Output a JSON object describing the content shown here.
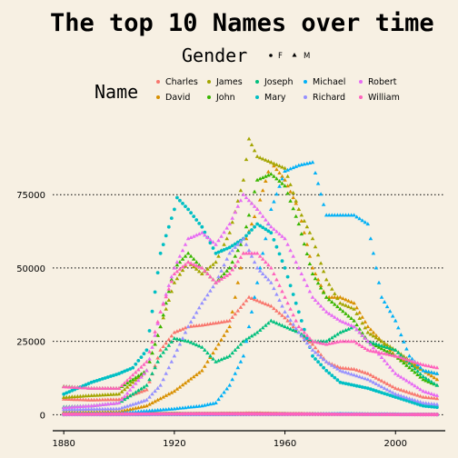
{
  "chart_data": {
    "type": "scatter",
    "title": "The top 10 Names over time",
    "xlabel": "",
    "ylabel": "",
    "xlim": [
      1876,
      2018
    ],
    "ylim": [
      -3000,
      98000
    ],
    "x_ticks": [
      1880,
      1920,
      1960,
      2000
    ],
    "y_ticks": [
      0,
      25000,
      50000,
      75000
    ],
    "y_tick_labels": [
      "0",
      "25000",
      "50000",
      "75000"
    ],
    "grid": "horizontal dotted",
    "legend_placement": "top",
    "shape_legend": {
      "title": "Gender",
      "items": [
        {
          "label": "F",
          "marker": "circle"
        },
        {
          "label": "M",
          "marker": "triangle"
        }
      ]
    },
    "color_legend": {
      "title": "Name",
      "items": [
        {
          "label": "Charles",
          "color": "#F8766D"
        },
        {
          "label": "David",
          "color": "#D89000"
        },
        {
          "label": "James",
          "color": "#A3A500"
        },
        {
          "label": "John",
          "color": "#39B600"
        },
        {
          "label": "Joseph",
          "color": "#00BF7D"
        },
        {
          "label": "Mary",
          "color": "#00BFC4"
        },
        {
          "label": "Michael",
          "color": "#00B0F6"
        },
        {
          "label": "Richard",
          "color": "#9590FF"
        },
        {
          "label": "Robert",
          "color": "#E76BF3"
        },
        {
          "label": "William",
          "color": "#FF62BC"
        }
      ]
    },
    "series": [
      {
        "name": "Charles",
        "gender": "M",
        "color": "#F8766D",
        "points": [
          [
            1880,
            5300
          ],
          [
            1890,
            5000
          ],
          [
            1900,
            5200
          ],
          [
            1910,
            8500
          ],
          [
            1915,
            22000
          ],
          [
            1920,
            28000
          ],
          [
            1925,
            30000
          ],
          [
            1930,
            30500
          ],
          [
            1940,
            32000
          ],
          [
            1947,
            40000
          ],
          [
            1955,
            37000
          ],
          [
            1960,
            33000
          ],
          [
            1965,
            28000
          ],
          [
            1970,
            24000
          ],
          [
            1975,
            18000
          ],
          [
            1980,
            16000
          ],
          [
            1985,
            15500
          ],
          [
            1990,
            14000
          ],
          [
            2000,
            9000
          ],
          [
            2010,
            6000
          ],
          [
            2015,
            5500
          ]
        ]
      },
      {
        "name": "Charles",
        "gender": "F",
        "color": "#F8766D",
        "points": [
          [
            1880,
            200
          ],
          [
            1920,
            400
          ],
          [
            1950,
            500
          ],
          [
            1980,
            200
          ],
          [
            2015,
            100
          ]
        ]
      },
      {
        "name": "David",
        "gender": "M",
        "color": "#D89000",
        "points": [
          [
            1880,
            800
          ],
          [
            1900,
            1000
          ],
          [
            1910,
            3000
          ],
          [
            1920,
            8000
          ],
          [
            1930,
            15000
          ],
          [
            1940,
            30000
          ],
          [
            1946,
            60000
          ],
          [
            1950,
            70000
          ],
          [
            1955,
            86000
          ],
          [
            1960,
            80000
          ],
          [
            1965,
            70000
          ],
          [
            1970,
            50000
          ],
          [
            1975,
            40000
          ],
          [
            1980,
            40000
          ],
          [
            1985,
            38000
          ],
          [
            1990,
            30000
          ],
          [
            2000,
            20000
          ],
          [
            2010,
            15000
          ],
          [
            2015,
            12000
          ]
        ]
      },
      {
        "name": "David",
        "gender": "F",
        "color": "#D89000",
        "points": [
          [
            1880,
            50
          ],
          [
            1950,
            150
          ],
          [
            2015,
            50
          ]
        ]
      },
      {
        "name": "James",
        "gender": "M",
        "color": "#A3A500",
        "points": [
          [
            1880,
            5900
          ],
          [
            1890,
            6500
          ],
          [
            1900,
            7000
          ],
          [
            1910,
            15000
          ],
          [
            1920,
            45000
          ],
          [
            1925,
            52000
          ],
          [
            1930,
            48000
          ],
          [
            1935,
            52000
          ],
          [
            1940,
            62000
          ],
          [
            1945,
            80000
          ],
          [
            1947,
            94000
          ],
          [
            1950,
            88000
          ],
          [
            1955,
            86000
          ],
          [
            1960,
            84000
          ],
          [
            1965,
            70000
          ],
          [
            1970,
            60000
          ],
          [
            1975,
            46000
          ],
          [
            1980,
            38000
          ],
          [
            1985,
            36000
          ],
          [
            1990,
            28000
          ],
          [
            2000,
            22000
          ],
          [
            2010,
            15000
          ],
          [
            2015,
            14000
          ]
        ]
      },
      {
        "name": "James",
        "gender": "F",
        "color": "#A3A500",
        "points": [
          [
            1880,
            300
          ],
          [
            1920,
            400
          ],
          [
            1950,
            300
          ],
          [
            2015,
            100
          ]
        ]
      },
      {
        "name": "John",
        "gender": "M",
        "color": "#39B600",
        "points": [
          [
            1880,
            9600
          ],
          [
            1890,
            9000
          ],
          [
            1900,
            9000
          ],
          [
            1910,
            15000
          ],
          [
            1915,
            30000
          ],
          [
            1920,
            50000
          ],
          [
            1925,
            55000
          ],
          [
            1930,
            50000
          ],
          [
            1935,
            45000
          ],
          [
            1940,
            50000
          ],
          [
            1945,
            60000
          ],
          [
            1950,
            80000
          ],
          [
            1955,
            82000
          ],
          [
            1960,
            78000
          ],
          [
            1965,
            65000
          ],
          [
            1970,
            48000
          ],
          [
            1975,
            40000
          ],
          [
            1980,
            36000
          ],
          [
            1985,
            32000
          ],
          [
            1990,
            25000
          ],
          [
            2000,
            20000
          ],
          [
            2010,
            12000
          ],
          [
            2015,
            10000
          ]
        ]
      },
      {
        "name": "John",
        "gender": "F",
        "color": "#39B600",
        "points": [
          [
            1880,
            150
          ],
          [
            1920,
            300
          ],
          [
            1950,
            200
          ],
          [
            2015,
            80
          ]
        ]
      },
      {
        "name": "Joseph",
        "gender": "M",
        "color": "#00BF7D",
        "points": [
          [
            1880,
            2600
          ],
          [
            1890,
            3000
          ],
          [
            1900,
            4000
          ],
          [
            1910,
            10000
          ],
          [
            1915,
            20000
          ],
          [
            1920,
            26000
          ],
          [
            1925,
            25000
          ],
          [
            1930,
            23000
          ],
          [
            1935,
            18000
          ],
          [
            1940,
            20000
          ],
          [
            1945,
            25000
          ],
          [
            1950,
            28000
          ],
          [
            1955,
            32000
          ],
          [
            1960,
            30000
          ],
          [
            1965,
            28000
          ],
          [
            1970,
            25000
          ],
          [
            1975,
            25000
          ],
          [
            1980,
            28000
          ],
          [
            1985,
            30000
          ],
          [
            1990,
            25000
          ],
          [
            2000,
            22000
          ],
          [
            2010,
            13000
          ],
          [
            2015,
            10000
          ]
        ]
      },
      {
        "name": "Joseph",
        "gender": "F",
        "color": "#00BF7D",
        "points": [
          [
            1880,
            100
          ],
          [
            1930,
            200
          ],
          [
            2015,
            50
          ]
        ]
      },
      {
        "name": "Mary",
        "gender": "F",
        "color": "#00BFC4",
        "points": [
          [
            1880,
            7000
          ],
          [
            1890,
            11000
          ],
          [
            1900,
            14000
          ],
          [
            1905,
            16000
          ],
          [
            1910,
            22000
          ],
          [
            1915,
            55000
          ],
          [
            1920,
            70000
          ],
          [
            1921,
            74000
          ],
          [
            1925,
            70000
          ],
          [
            1930,
            64000
          ],
          [
            1935,
            55000
          ],
          [
            1940,
            57000
          ],
          [
            1945,
            60000
          ],
          [
            1950,
            65000
          ],
          [
            1955,
            62000
          ],
          [
            1960,
            50000
          ],
          [
            1965,
            35000
          ],
          [
            1970,
            20000
          ],
          [
            1975,
            15000
          ],
          [
            1980,
            11000
          ],
          [
            1985,
            10000
          ],
          [
            1990,
            9000
          ],
          [
            2000,
            6000
          ],
          [
            2010,
            3000
          ],
          [
            2015,
            2500
          ]
        ]
      },
      {
        "name": "Mary",
        "gender": "M",
        "color": "#00BFC4",
        "points": [
          [
            1880,
            150
          ],
          [
            1920,
            300
          ],
          [
            1950,
            200
          ],
          [
            2015,
            50
          ]
        ]
      },
      {
        "name": "Michael",
        "gender": "M",
        "color": "#00B0F6",
        "points": [
          [
            1880,
            400
          ],
          [
            1900,
            500
          ],
          [
            1920,
            2000
          ],
          [
            1930,
            3000
          ],
          [
            1935,
            4000
          ],
          [
            1940,
            10000
          ],
          [
            1945,
            20000
          ],
          [
            1950,
            45000
          ],
          [
            1955,
            70000
          ],
          [
            1960,
            83000
          ],
          [
            1965,
            85000
          ],
          [
            1970,
            86000
          ],
          [
            1975,
            68000
          ],
          [
            1980,
            68000
          ],
          [
            1985,
            68000
          ],
          [
            1990,
            65000
          ],
          [
            1995,
            40000
          ],
          [
            2000,
            32000
          ],
          [
            2005,
            20000
          ],
          [
            2010,
            15000
          ],
          [
            2015,
            14000
          ]
        ]
      },
      {
        "name": "Michael",
        "gender": "F",
        "color": "#00B0F6",
        "points": [
          [
            1880,
            20
          ],
          [
            1960,
            100
          ],
          [
            1980,
            300
          ],
          [
            2015,
            50
          ]
        ]
      },
      {
        "name": "Richard",
        "gender": "M",
        "color": "#9590FF",
        "points": [
          [
            1880,
            1700
          ],
          [
            1900,
            2000
          ],
          [
            1910,
            5000
          ],
          [
            1915,
            10000
          ],
          [
            1920,
            20000
          ],
          [
            1925,
            30000
          ],
          [
            1930,
            38000
          ],
          [
            1935,
            45000
          ],
          [
            1940,
            55000
          ],
          [
            1945,
            60000
          ],
          [
            1950,
            50000
          ],
          [
            1955,
            45000
          ],
          [
            1960,
            35000
          ],
          [
            1965,
            28000
          ],
          [
            1970,
            22000
          ],
          [
            1975,
            18000
          ],
          [
            1980,
            15000
          ],
          [
            1990,
            12000
          ],
          [
            2000,
            7000
          ],
          [
            2010,
            4000
          ],
          [
            2015,
            3500
          ]
        ]
      },
      {
        "name": "Richard",
        "gender": "F",
        "color": "#9590FF",
        "points": [
          [
            1880,
            50
          ],
          [
            1940,
            200
          ],
          [
            2015,
            20
          ]
        ]
      },
      {
        "name": "Robert",
        "gender": "M",
        "color": "#E76BF3",
        "points": [
          [
            1880,
            2400
          ],
          [
            1890,
            3000
          ],
          [
            1900,
            4000
          ],
          [
            1910,
            15000
          ],
          [
            1915,
            35000
          ],
          [
            1920,
            50000
          ],
          [
            1925,
            60000
          ],
          [
            1930,
            62000
          ],
          [
            1935,
            58000
          ],
          [
            1940,
            65000
          ],
          [
            1945,
            75000
          ],
          [
            1950,
            70000
          ],
          [
            1955,
            64000
          ],
          [
            1960,
            60000
          ],
          [
            1965,
            50000
          ],
          [
            1970,
            40000
          ],
          [
            1975,
            35000
          ],
          [
            1980,
            32000
          ],
          [
            1985,
            30000
          ],
          [
            1990,
            25000
          ],
          [
            2000,
            14000
          ],
          [
            2010,
            8000
          ],
          [
            2015,
            6500
          ]
        ]
      },
      {
        "name": "Robert",
        "gender": "F",
        "color": "#E76BF3",
        "points": [
          [
            1880,
            100
          ],
          [
            1930,
            300
          ],
          [
            2015,
            30
          ]
        ]
      },
      {
        "name": "William",
        "gender": "M",
        "color": "#FF62BC",
        "points": [
          [
            1880,
            9500
          ],
          [
            1890,
            9000
          ],
          [
            1900,
            9000
          ],
          [
            1910,
            18000
          ],
          [
            1915,
            35000
          ],
          [
            1920,
            48000
          ],
          [
            1925,
            52000
          ],
          [
            1930,
            50000
          ],
          [
            1935,
            45000
          ],
          [
            1940,
            48000
          ],
          [
            1945,
            55000
          ],
          [
            1950,
            55000
          ],
          [
            1955,
            50000
          ],
          [
            1960,
            40000
          ],
          [
            1965,
            30000
          ],
          [
            1970,
            25000
          ],
          [
            1975,
            24000
          ],
          [
            1980,
            25000
          ],
          [
            1985,
            25000
          ],
          [
            1990,
            22000
          ],
          [
            2000,
            20000
          ],
          [
            2010,
            17000
          ],
          [
            2015,
            16000
          ]
        ]
      },
      {
        "name": "William",
        "gender": "F",
        "color": "#FF62BC",
        "points": [
          [
            1880,
            150
          ],
          [
            1930,
            250
          ],
          [
            2015,
            30
          ]
        ]
      }
    ]
  }
}
